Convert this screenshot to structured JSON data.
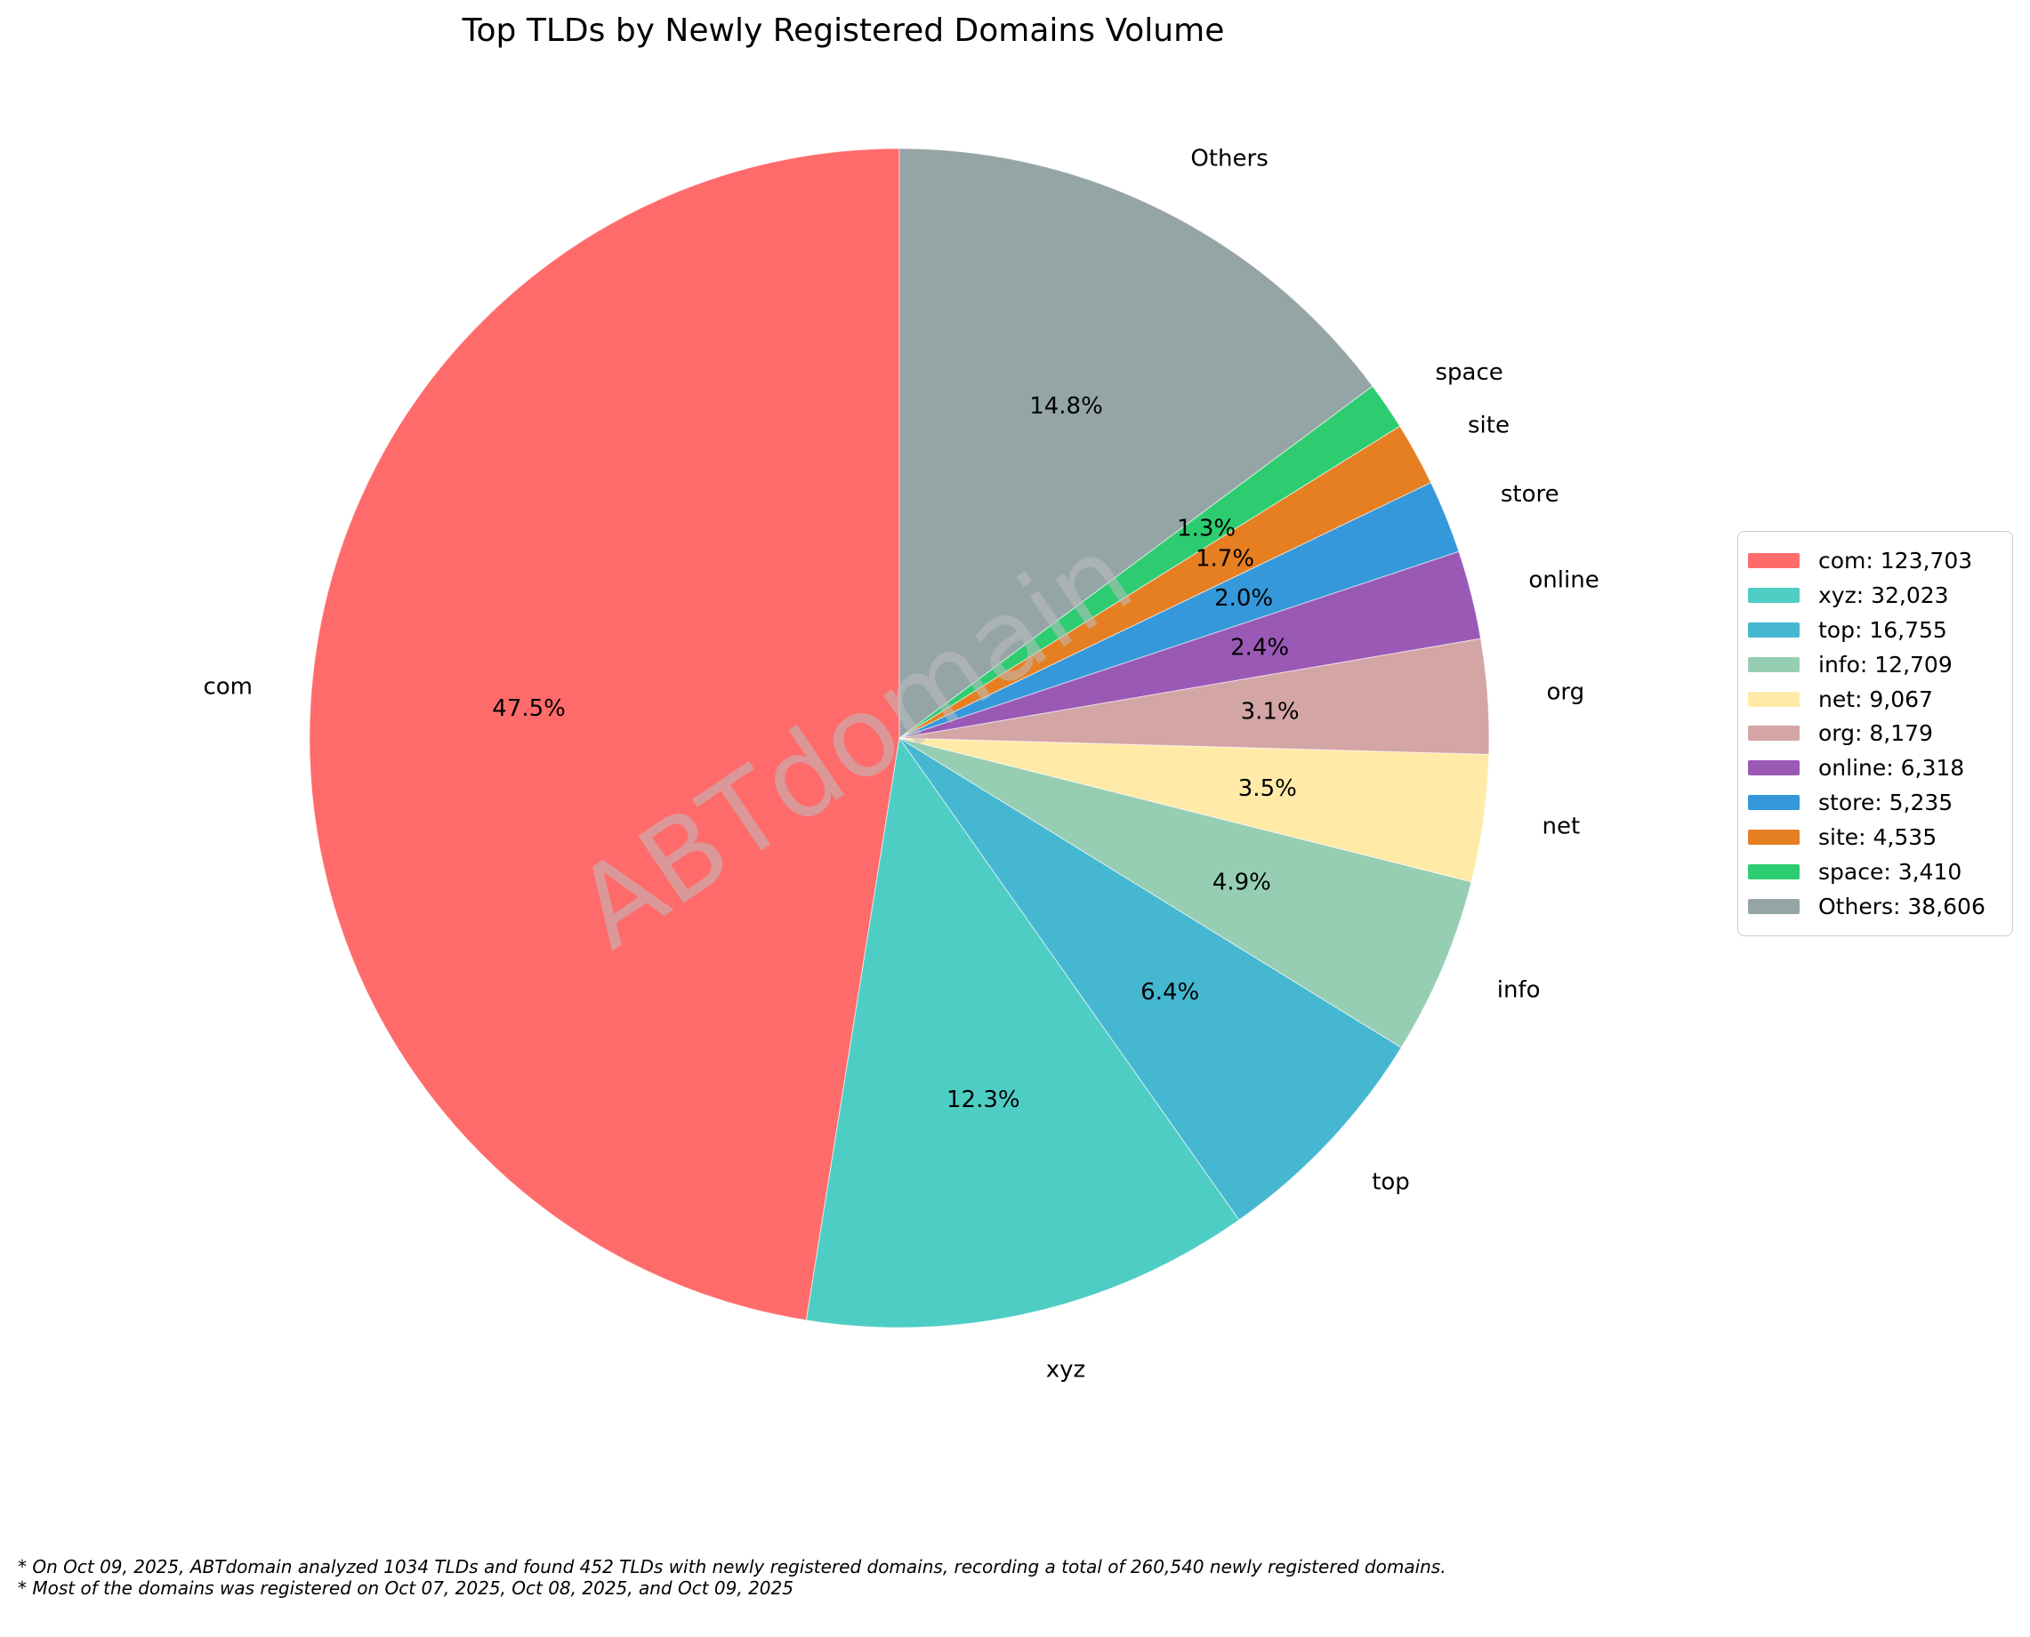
{
  "watermark": "ABTdomain",
  "chart_data": {
    "type": "pie",
    "title": "Top TLDs by Newly Registered Domains Volume",
    "total": 260540,
    "start_angle": 90,
    "direction": "counterclockwise",
    "legend_position": "right",
    "slices": [
      {
        "label": "com",
        "value": 123703,
        "value_display": "123,703",
        "pct_label": "47.5%",
        "color": "#FF6B6B",
        "legend_label": "com: 123,703"
      },
      {
        "label": "xyz",
        "value": 32023,
        "value_display": "32,023",
        "pct_label": "12.3%",
        "color": "#4ECDC4",
        "legend_label": "xyz: 32,023"
      },
      {
        "label": "top",
        "value": 16755,
        "value_display": "16,755",
        "pct_label": "6.4%",
        "color": "#45B7D1",
        "legend_label": "top: 16,755"
      },
      {
        "label": "info",
        "value": 12709,
        "value_display": "12,709",
        "pct_label": "4.9%",
        "color": "#96CEB4",
        "legend_label": "info: 12,709"
      },
      {
        "label": "net",
        "value": 9067,
        "value_display": "9,067",
        "pct_label": "3.5%",
        "color": "#FFEAA7",
        "legend_label": "net: 9,067"
      },
      {
        "label": "org",
        "value": 8179,
        "value_display": "8,179",
        "pct_label": "3.1%",
        "color": "#D4A5A5",
        "legend_label": "org: 8,179"
      },
      {
        "label": "online",
        "value": 6318,
        "value_display": "6,318",
        "pct_label": "2.4%",
        "color": "#9B59B6",
        "legend_label": "online: 6,318"
      },
      {
        "label": "store",
        "value": 5235,
        "value_display": "5,235",
        "pct_label": "2.0%",
        "color": "#3498DB",
        "legend_label": "store: 5,235"
      },
      {
        "label": "site",
        "value": 4535,
        "value_display": "4,535",
        "pct_label": "1.7%",
        "color": "#E67E22",
        "legend_label": "site: 4,535"
      },
      {
        "label": "space",
        "value": 3410,
        "value_display": "3,410",
        "pct_label": "1.3%",
        "color": "#2ECC71",
        "legend_label": "space: 3,410"
      },
      {
        "label": "Others",
        "value": 38606,
        "value_display": "38,606",
        "pct_label": "14.8%",
        "color": "#95A5A6",
        "legend_label": "Others: 38,606"
      }
    ]
  },
  "footnotes": [
    "* On Oct 09, 2025, ABTdomain analyzed 1034 TLDs and found 452 TLDs with newly registered domains, recording a total of 260,540 newly registered domains.",
    "* Most of the domains was registered on Oct 07, 2025, Oct 08, 2025, and Oct 09, 2025"
  ]
}
